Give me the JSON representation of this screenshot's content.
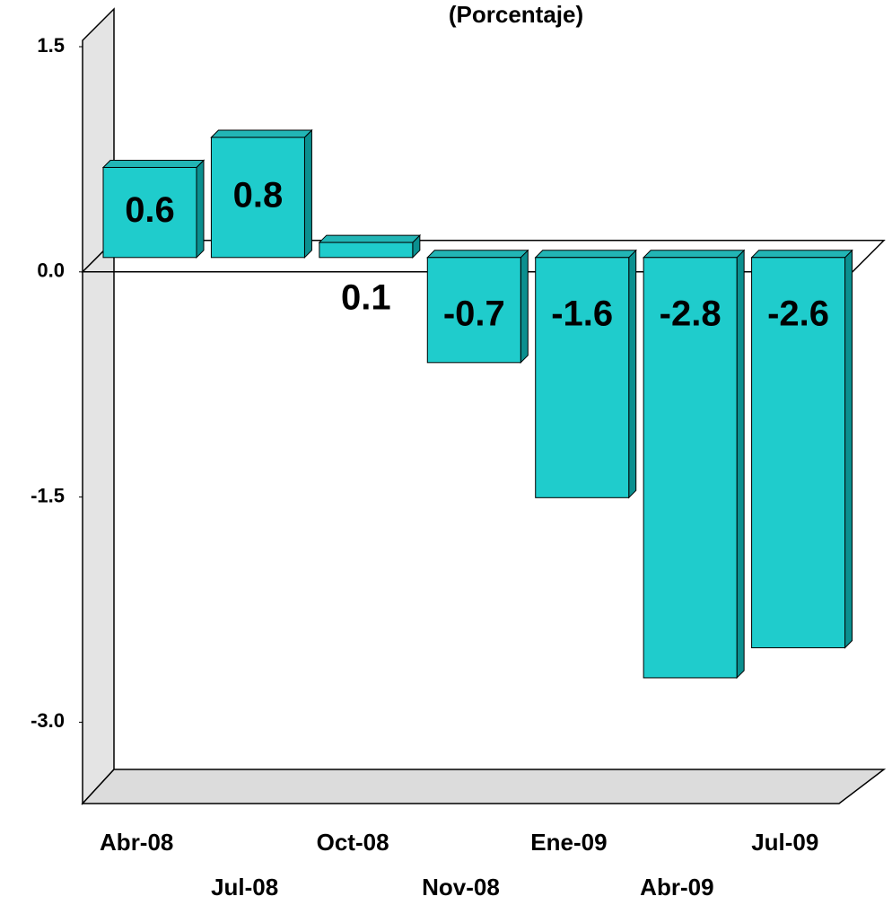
{
  "chart_data": {
    "type": "bar3d",
    "title": "(Porcentaje)",
    "categories": [
      "Abr-08",
      "Jul-08",
      "Oct-08",
      "Nov-08",
      "Ene-09",
      "Abr-09",
      "Jul-09"
    ],
    "values": [
      0.6,
      0.8,
      0.1,
      -0.7,
      -1.6,
      -2.8,
      -2.6
    ],
    "color": "#1fcccc",
    "ylim": [
      -3.5,
      1.5
    ],
    "yticks": [
      1.5,
      {
        "value": 0,
        "label": "0.0"
      },
      -1.5,
      {
        "value": -3,
        "label": "-3.0"
      }
    ]
  }
}
